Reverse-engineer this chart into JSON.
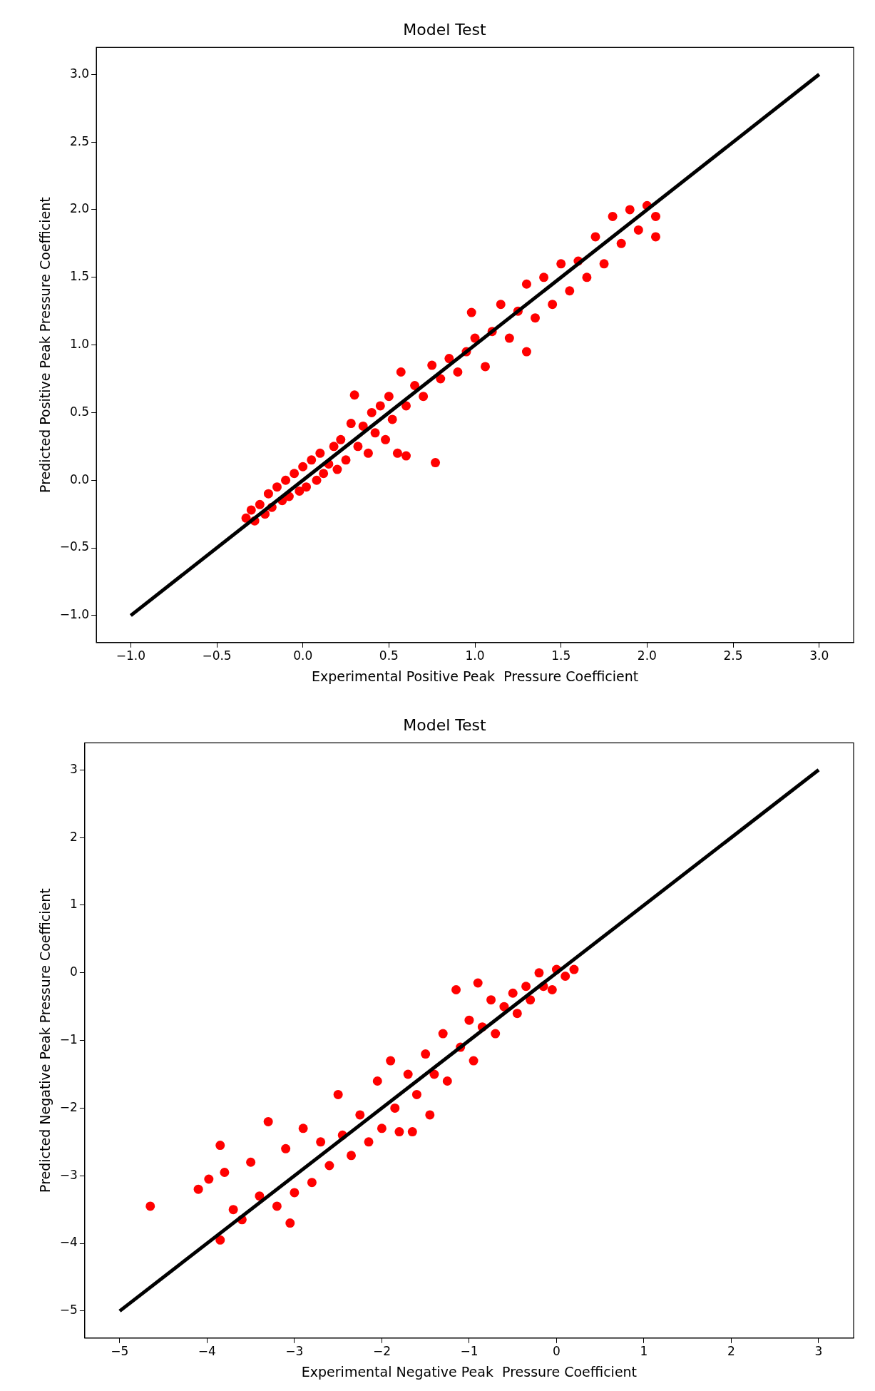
{
  "chart_data": [
    {
      "type": "scatter",
      "title": "Model Test",
      "xlabel": "Experimental Positive Peak  Pressure Coefficient",
      "ylabel": "Predicted Positive Peak Pressure Coefficient",
      "xlim": [
        -1.2,
        3.2
      ],
      "ylim": [
        -1.2,
        3.2
      ],
      "xticks": [
        {
          "value": -1,
          "label": "−1.0"
        },
        {
          "value": -0.5,
          "label": "−0.5"
        },
        {
          "value": 0,
          "label": "0.0"
        },
        {
          "value": 0.5,
          "label": "0.5"
        },
        {
          "value": 1,
          "label": "1.0"
        },
        {
          "value": 1.5,
          "label": "1.5"
        },
        {
          "value": 2,
          "label": "2.0"
        },
        {
          "value": 2.5,
          "label": "2.5"
        },
        {
          "value": 3,
          "label": "3.0"
        }
      ],
      "yticks": [
        {
          "value": -1,
          "label": "−1.0"
        },
        {
          "value": -0.5,
          "label": "−0.5"
        },
        {
          "value": 0,
          "label": "0.0"
        },
        {
          "value": 0.5,
          "label": "0.5"
        },
        {
          "value": 1,
          "label": "1.0"
        },
        {
          "value": 1.5,
          "label": "1.5"
        },
        {
          "value": 2,
          "label": "2.0"
        },
        {
          "value": 2.5,
          "label": "2.5"
        },
        {
          "value": 3,
          "label": "3.0"
        }
      ],
      "grid": false,
      "legend": false,
      "marker": "circle",
      "series": [
        {
          "type": "scatter",
          "color": "#ff0000",
          "x": [
            -0.33,
            -0.3,
            -0.28,
            -0.25,
            -0.22,
            -0.2,
            -0.18,
            -0.15,
            -0.12,
            -0.1,
            -0.08,
            -0.05,
            -0.02,
            0.0,
            0.02,
            0.05,
            0.08,
            0.1,
            0.12,
            0.15,
            0.18,
            0.2,
            0.22,
            0.25,
            0.28,
            0.3,
            0.32,
            0.35,
            0.38,
            0.4,
            0.42,
            0.45,
            0.48,
            0.5,
            0.52,
            0.55,
            0.57,
            0.6,
            0.6,
            0.65,
            0.7,
            0.75,
            0.77,
            0.8,
            0.85,
            0.9,
            0.95,
            0.98,
            1.0,
            1.06,
            1.1,
            1.15,
            1.2,
            1.25,
            1.3,
            1.3,
            1.35,
            1.4,
            1.45,
            1.5,
            1.55,
            1.6,
            1.65,
            1.7,
            1.75,
            1.8,
            1.85,
            1.9,
            1.95,
            2.0,
            2.05,
            2.05
          ],
          "values": [
            -0.28,
            -0.22,
            -0.3,
            -0.18,
            -0.25,
            -0.1,
            -0.2,
            -0.05,
            -0.15,
            0.0,
            -0.12,
            0.05,
            -0.08,
            0.1,
            -0.05,
            0.15,
            0.0,
            0.2,
            0.05,
            0.12,
            0.25,
            0.08,
            0.3,
            0.15,
            0.42,
            0.63,
            0.25,
            0.4,
            0.2,
            0.5,
            0.35,
            0.55,
            0.3,
            0.62,
            0.45,
            0.2,
            0.8,
            0.55,
            0.18,
            0.7,
            0.62,
            0.85,
            0.13,
            0.75,
            0.9,
            0.8,
            0.95,
            1.24,
            1.05,
            0.84,
            1.1,
            1.3,
            1.05,
            1.25,
            0.95,
            1.45,
            1.2,
            1.5,
            1.3,
            1.6,
            1.4,
            1.62,
            1.5,
            1.8,
            1.6,
            1.95,
            1.75,
            2.0,
            1.85,
            2.03,
            1.8,
            1.95
          ]
        },
        {
          "type": "line",
          "color": "#000000",
          "marker": "none",
          "x": [
            -1,
            3
          ],
          "values": [
            -1,
            3
          ]
        }
      ]
    },
    {
      "type": "scatter",
      "title": "Model Test",
      "xlabel": "Experimental Negative Peak  Pressure Coefficient",
      "ylabel": "Predicted Negative Peak Pressure Coefficient",
      "xlim": [
        -5.4,
        3.4
      ],
      "ylim": [
        -5.4,
        3.4
      ],
      "xticks": [
        {
          "value": -5,
          "label": "−5"
        },
        {
          "value": -4,
          "label": "−4"
        },
        {
          "value": -3,
          "label": "−3"
        },
        {
          "value": -2,
          "label": "−2"
        },
        {
          "value": -1,
          "label": "−1"
        },
        0,
        1,
        2,
        3
      ],
      "yticks": [
        {
          "value": -5,
          "label": "−5"
        },
        {
          "value": -4,
          "label": "−4"
        },
        {
          "value": -3,
          "label": "−3"
        },
        {
          "value": -2,
          "label": "−2"
        },
        {
          "value": -1,
          "label": "−1"
        },
        0,
        1,
        2,
        3
      ],
      "grid": false,
      "legend": false,
      "marker": "circle",
      "series": [
        {
          "type": "scatter",
          "color": "#ff0000",
          "x": [
            -4.65,
            -4.1,
            -3.98,
            -3.85,
            -3.85,
            -3.8,
            -3.7,
            -3.6,
            -3.5,
            -3.4,
            -3.3,
            -3.2,
            -3.1,
            -3.05,
            -3.0,
            -2.9,
            -2.8,
            -2.7,
            -2.6,
            -2.5,
            -2.45,
            -2.35,
            -2.25,
            -2.15,
            -2.05,
            -2.0,
            -1.9,
            -1.85,
            -1.8,
            -1.7,
            -1.65,
            -1.6,
            -1.5,
            -1.45,
            -1.4,
            -1.3,
            -1.25,
            -1.15,
            -1.1,
            -1.0,
            -0.95,
            -0.9,
            -0.85,
            -0.75,
            -0.7,
            -0.6,
            -0.5,
            -0.45,
            -0.35,
            -0.3,
            -0.2,
            -0.15,
            -0.05,
            0.0,
            0.1,
            0.2
          ],
          "values": [
            -3.45,
            -3.2,
            -3.05,
            -3.95,
            -2.55,
            -2.95,
            -3.5,
            -3.65,
            -2.8,
            -3.3,
            -2.2,
            -3.45,
            -2.6,
            -3.7,
            -3.25,
            -2.3,
            -3.1,
            -2.5,
            -2.85,
            -1.8,
            -2.4,
            -2.7,
            -2.1,
            -2.5,
            -1.6,
            -2.3,
            -1.3,
            -2.0,
            -2.35,
            -1.5,
            -2.35,
            -1.8,
            -1.2,
            -2.1,
            -1.5,
            -0.9,
            -1.6,
            -0.25,
            -1.1,
            -0.7,
            -1.3,
            -0.15,
            -0.8,
            -0.4,
            -0.9,
            -0.5,
            -0.3,
            -0.6,
            -0.2,
            -0.4,
            0.0,
            -0.2,
            -0.25,
            0.05,
            -0.05,
            0.05
          ]
        },
        {
          "type": "line",
          "color": "#000000",
          "marker": "none",
          "x": [
            -5,
            3
          ],
          "values": [
            -5,
            3
          ]
        }
      ]
    }
  ]
}
